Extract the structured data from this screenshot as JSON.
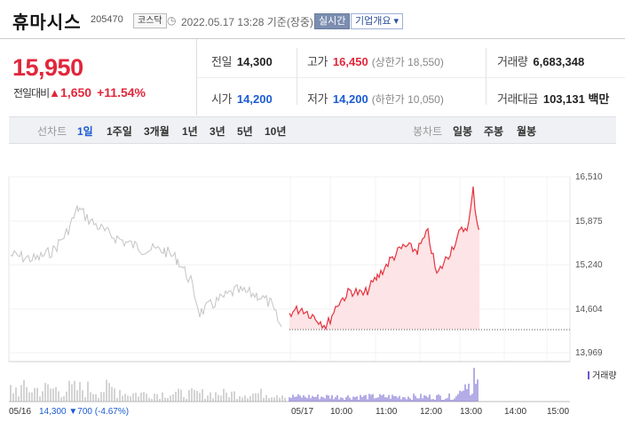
{
  "header": {
    "name": "휴마시스",
    "code": "205470",
    "market_badge": "코스닥",
    "clock_icon": "clock-icon",
    "datetime": "2022.05.17 13:28 기준(장중)",
    "live_badge": "실시간",
    "info_button": "기업개요 ▾"
  },
  "price": {
    "current": "15,950",
    "diff_label": "전일대비",
    "diff_value": "1,650",
    "diff_pct": "+11.54%",
    "direction_icon": "up-triangle-icon"
  },
  "stats": {
    "prev_label": "전일",
    "prev_value": "14,300",
    "high_label": "고가",
    "high_value": "16,450",
    "upper_limit": "(상한가 18,550)",
    "volume_label": "거래량",
    "volume_value": "6,683,348",
    "open_label": "시가",
    "open_value": "14,200",
    "low_label": "저가",
    "low_value": "14,200",
    "lower_limit": "(하한가 10,050)",
    "amount_label": "거래대금",
    "amount_value": "103,131 백만"
  },
  "tabs": {
    "line_chart_label": "선차트",
    "ranges": [
      "1일",
      "1주일",
      "3개월",
      "1년",
      "3년",
      "5년",
      "10년"
    ],
    "active_range": "1일",
    "candle_label": "봉차트",
    "candles": [
      "일봉",
      "주봉",
      "월봉"
    ]
  },
  "chart": {
    "y_ticks": [
      "16,510",
      "15,875",
      "15,240",
      "14,604",
      "13,969"
    ],
    "x_ticks": [
      "05/16",
      "05/17",
      "10:00",
      "11:00",
      "12:00",
      "13:00",
      "14:00",
      "15:00"
    ],
    "volume_legend": "거래량",
    "prev_day_note_prefix": "14,300",
    "prev_day_note_change": "▼700 (-4.67%)",
    "colors": {
      "today_line": "#e5323e",
      "today_fill": "#fde4e6",
      "prev_line": "#c4c4c4",
      "volume_prev": "#aaaaaa",
      "volume_today": "#6a5acd"
    }
  }
}
